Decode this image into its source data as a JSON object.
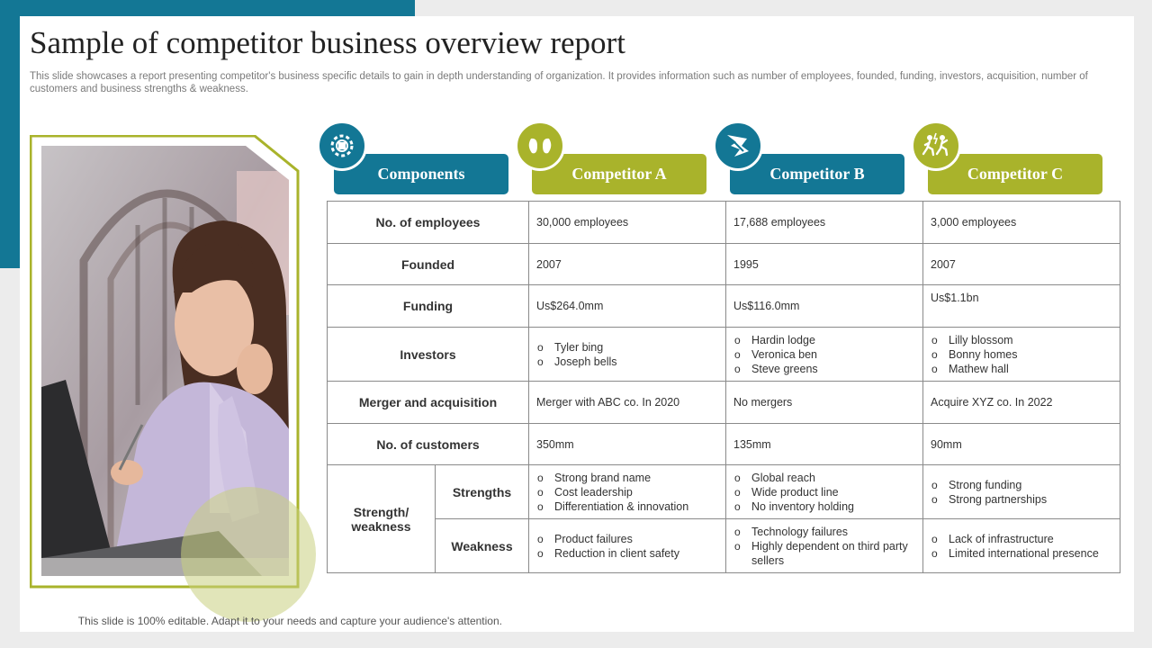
{
  "title": "Sample of competitor business overview report",
  "subtitle": "This slide showcases a report presenting competitor's business specific details to gain in depth understanding of organization. It provides information such as number of employees, founded, funding, investors, acquisition, number of customers and business strengths & weakness.",
  "footer": "This slide is 100% editable. Adapt it to your needs and capture your audience's attention.",
  "colors": {
    "teal": "#137795",
    "olive": "#a9b32b"
  },
  "headers": [
    {
      "label": "Components",
      "icon": "gears-icon",
      "color": "teal"
    },
    {
      "label": "Competitor A",
      "icon": "kidneys-icon",
      "color": "olive"
    },
    {
      "label": "Competitor B",
      "icon": "breaking-glass-icon",
      "color": "teal"
    },
    {
      "label": "Competitor C",
      "icon": "running-people-icon",
      "color": "olive"
    }
  ],
  "rows": {
    "employees": {
      "label": "No. of employees",
      "a": "30,000 employees",
      "b": "17,688 employees",
      "c": "3,000 employees"
    },
    "founded": {
      "label": "Founded",
      "a": "2007",
      "b": "1995",
      "c": "2007"
    },
    "funding": {
      "label": "Funding",
      "a": "Us$264.0mm",
      "b": "Us$116.0mm",
      "c": "Us$1.1bn"
    },
    "investors": {
      "label": "Investors",
      "a": [
        "Tyler bing",
        "Joseph bells"
      ],
      "b": [
        "Hardin lodge",
        "Veronica ben",
        "Steve greens"
      ],
      "c": [
        "Lilly blossom",
        "Bonny homes",
        "Mathew hall"
      ]
    },
    "merger": {
      "label": "Merger and acquisition",
      "a": "Merger with ABC co. In 2020",
      "b": "No mergers",
      "c": "Acquire XYZ co. In 2022"
    },
    "customers": {
      "label": "No. of customers",
      "a": "350mm",
      "b": "135mm",
      "c": "90mm"
    },
    "strength_weakness": {
      "label": "Strength/ weakness",
      "strengths": {
        "label": "Strengths",
        "a": [
          "Strong brand name",
          "Cost leadership",
          "Differentiation  & innovation"
        ],
        "b": [
          "Global reach",
          "Wide product line",
          "No inventory holding"
        ],
        "c": [
          "Strong funding",
          "Strong partnerships"
        ]
      },
      "weakness": {
        "label": "Weakness",
        "a": [
          "Product failures",
          "Reduction in client safety"
        ],
        "b": [
          "Technology failures",
          "Highly dependent on third party sellers"
        ],
        "c": [
          "Lack of infrastructure",
          "Limited international presence"
        ]
      }
    }
  }
}
